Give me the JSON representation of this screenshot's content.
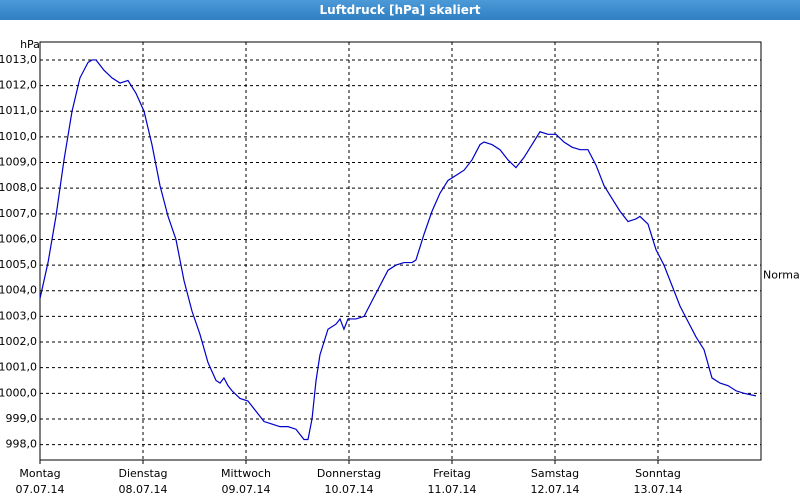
{
  "chart_data": {
    "type": "line",
    "title": "Luftdruck [hPa] skaliert",
    "y_label": "hPa",
    "annotation": {
      "label": "Normal",
      "value": 1004.6
    },
    "x": [
      0,
      0.078,
      0.155,
      0.233,
      0.311,
      0.388,
      0.466,
      0.505,
      0.544,
      0.621,
      0.699,
      0.777,
      0.854,
      0.932,
      1.01,
      1.087,
      1.165,
      1.243,
      1.32,
      1.398,
      1.476,
      1.553,
      1.631,
      1.709,
      1.748,
      1.786,
      1.825,
      1.864,
      1.942,
      2.019,
      2.097,
      2.175,
      2.252,
      2.33,
      2.408,
      2.485,
      2.563,
      2.602,
      2.641,
      2.68,
      2.718,
      2.796,
      2.874,
      2.913,
      2.951,
      2.99,
      3.068,
      3.146,
      3.223,
      3.301,
      3.379,
      3.456,
      3.534,
      3.612,
      3.65,
      3.728,
      3.806,
      3.883,
      3.961,
      4.039,
      4.117,
      4.194,
      4.272,
      4.311,
      4.388,
      4.466,
      4.544,
      4.621,
      4.699,
      4.777,
      4.854,
      4.932,
      5.01,
      5.087,
      5.165,
      5.243,
      5.32,
      5.398,
      5.476,
      5.553,
      5.631,
      5.709,
      5.786,
      5.825,
      5.903,
      5.981,
      6.058,
      6.136,
      6.214,
      6.291,
      6.369,
      6.447,
      6.524,
      6.602,
      6.68,
      6.757,
      6.835,
      6.951
    ],
    "values": [
      1003.7,
      1005.1,
      1006.9,
      1009.1,
      1011.0,
      1012.3,
      1012.9,
      1013.0,
      1013.0,
      1012.6,
      1012.3,
      1012.1,
      1012.2,
      1011.7,
      1011.0,
      1009.7,
      1008.1,
      1006.9,
      1006.0,
      1004.4,
      1003.2,
      1002.3,
      1001.2,
      1000.5,
      1000.4,
      1000.6,
      1000.3,
      1000.1,
      999.8,
      999.7,
      999.3,
      998.9,
      998.8,
      998.7,
      998.7,
      998.6,
      998.2,
      998.2,
      999.0,
      1000.5,
      1001.5,
      1002.5,
      1002.7,
      1002.9,
      1002.5,
      1002.9,
      1002.9,
      1003.0,
      1003.6,
      1004.2,
      1004.8,
      1005.0,
      1005.1,
      1005.1,
      1005.2,
      1006.2,
      1007.1,
      1007.8,
      1008.3,
      1008.5,
      1008.7,
      1009.1,
      1009.7,
      1009.8,
      1009.7,
      1009.5,
      1009.1,
      1008.8,
      1009.2,
      1009.7,
      1010.2,
      1010.1,
      1010.1,
      1009.8,
      1009.6,
      1009.5,
      1009.5,
      1008.9,
      1008.1,
      1007.6,
      1007.1,
      1006.7,
      1006.8,
      1006.9,
      1006.6,
      1005.6,
      1005.0,
      1004.2,
      1003.4,
      1002.8,
      1002.2,
      1001.7,
      1000.6,
      1000.4,
      1000.3,
      1000.1,
      1000.0,
      999.9
    ],
    "color": "#0000c8",
    "xlim": [
      0,
      7
    ],
    "ylim": [
      997.4,
      1013.7
    ],
    "xticks": [
      {
        "value": 0,
        "label": "Montag",
        "date": "07.07.14"
      },
      {
        "value": 1,
        "label": "Dienstag",
        "date": "08.07.14"
      },
      {
        "value": 2,
        "label": "Mittwoch",
        "date": "09.07.14"
      },
      {
        "value": 3,
        "label": "Donnerstag",
        "date": "10.07.14"
      },
      {
        "value": 4,
        "label": "Freitag",
        "date": "11.07.14"
      },
      {
        "value": 5,
        "label": "Samstag",
        "date": "12.07.14"
      },
      {
        "value": 6,
        "label": "Sonntag",
        "date": "13.07.14"
      }
    ],
    "yticks": [
      {
        "value": 998,
        "label": "998,0"
      },
      {
        "value": 999,
        "label": "999,0"
      },
      {
        "value": 1000,
        "label": "1000,0"
      },
      {
        "value": 1001,
        "label": "1001,0"
      },
      {
        "value": 1002,
        "label": "1002,0"
      },
      {
        "value": 1003,
        "label": "1003,0"
      },
      {
        "value": 1004,
        "label": "1004,0"
      },
      {
        "value": 1005,
        "label": "1005,0"
      },
      {
        "value": 1006,
        "label": "1006,0"
      },
      {
        "value": 1007,
        "label": "1007,0"
      },
      {
        "value": 1008,
        "label": "1008,0"
      },
      {
        "value": 1009,
        "label": "1009,0"
      },
      {
        "value": 1010,
        "label": "1010,0"
      },
      {
        "value": 1011,
        "label": "1011,0"
      },
      {
        "value": 1012,
        "label": "1012,0"
      },
      {
        "value": 1013,
        "label": "1013,0"
      }
    ],
    "grid": true
  }
}
